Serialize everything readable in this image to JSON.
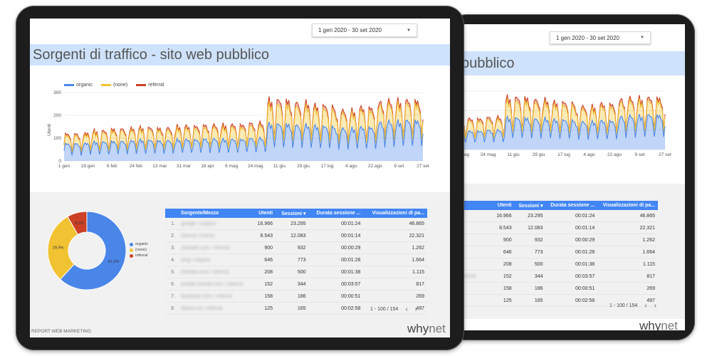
{
  "report": {
    "date_range": "1 gen 2020 - 30 set 2020",
    "title": "Sorgenti di traffico - sito web pubblico",
    "title_partial": "pubblico",
    "footer": "REPORT WEB MARKETING",
    "logo_why": "why",
    "logo_net": "net"
  },
  "chart_data": {
    "type": "area",
    "stacked": true,
    "title": "",
    "xlabel": "",
    "ylabel": "Utenti",
    "ylim": [
      0,
      300
    ],
    "yticks": [
      "0",
      "100",
      "200",
      "300"
    ],
    "xticks": [
      "1 gen",
      "19 gen",
      "6 feb",
      "24 feb",
      "13 mar",
      "31 mar",
      "18 apr",
      "6 mag",
      "24 mag",
      "11 giu",
      "29 giu",
      "17 lug",
      "4 ago",
      "22 ago",
      "9 set",
      "27 set"
    ],
    "xticks_back": [
      "6 mag",
      "24 mag",
      "11 giu",
      "29 giu",
      "17 lug",
      "4 ago",
      "22 ago",
      "9 set",
      "27 set"
    ],
    "legend_position": "top-left",
    "series": [
      {
        "name": "organic",
        "color": "#4a86e8",
        "weekday_peak": [
          75,
          82,
          85,
          90,
          88,
          92,
          95,
          93,
          98,
          160,
          155,
          150,
          140,
          145,
          170,
          175
        ],
        "weekend_low": [
          15,
          18,
          20,
          20,
          22,
          25,
          25,
          26,
          28,
          40,
          40,
          38,
          35,
          36,
          42,
          45
        ]
      },
      {
        "name": "(none)",
        "color": "#f1c232",
        "weekday_peak": [
          35,
          40,
          45,
          45,
          45,
          48,
          50,
          52,
          55,
          85,
          80,
          75,
          65,
          72,
          75,
          72
        ],
        "weekend_low": [
          8,
          10,
          10,
          12,
          12,
          12,
          14,
          14,
          15,
          20,
          20,
          18,
          16,
          18,
          20,
          20
        ]
      },
      {
        "name": "referral",
        "color": "#cc4125",
        "weekday_peak": [
          8,
          9,
          10,
          10,
          10,
          11,
          11,
          12,
          12,
          20,
          18,
          16,
          14,
          15,
          16,
          16
        ],
        "weekend_low": [
          3,
          3,
          3,
          3,
          4,
          4,
          4,
          4,
          4,
          6,
          6,
          5,
          5,
          5,
          6,
          6
        ]
      }
    ]
  },
  "pie_data": {
    "type": "pie",
    "slices": [
      {
        "name": "organic",
        "value": 61.9,
        "label": "61,9%",
        "color": "#4a86e8"
      },
      {
        "name": "(none)",
        "value": 29.9,
        "label": "29,9%",
        "color": "#f1c232"
      },
      {
        "name": "referral",
        "value": 8.2,
        "label": "8,2%",
        "color": "#cc4125"
      }
    ]
  },
  "table": {
    "headers": {
      "source": "Sorgente/Mezzo",
      "users": "Utenti",
      "sessions": "Sessioni",
      "duration": "Durata sessione ...",
      "views": "Visualizzazioni di pa..."
    },
    "sort_icon": "sort-down-icon",
    "rows": [
      {
        "idx": "1.",
        "src": "google / organic",
        "users": "16.966",
        "sessions": "23.295",
        "duration": "00:01:24",
        "views": "46.865"
      },
      {
        "idx": "2.",
        "src": "(direct) / (none)",
        "users": "8.543",
        "sessions": "12.083",
        "duration": "00:01:14",
        "views": "22.321"
      },
      {
        "idx": "3.",
        "src": "youtube.com / referral",
        "users": "900",
        "sessions": "932",
        "duration": "00:00:29",
        "views": "1.262"
      },
      {
        "idx": "4.",
        "src": "bing / organic",
        "users": "646",
        "sessions": "773",
        "duration": "00:01:28",
        "views": "1.664"
      },
      {
        "idx": "5.",
        "src": "linkedin.com / referral",
        "users": "208",
        "sessions": "500",
        "duration": "00:01:38",
        "views": "1.115"
      },
      {
        "idx": "6.",
        "src": "portale.ehmail.com / referral",
        "users": "152",
        "sessions": "344",
        "duration": "00:03:57",
        "views": "817"
      },
      {
        "idx": "7.",
        "src": "facebook.com / referral",
        "users": "158",
        "sessions": "186",
        "duration": "00:00:51",
        "views": "269"
      },
      {
        "idx": "8.",
        "src": "dtseco.eu / referral",
        "users": "125",
        "sessions": "165",
        "duration": "00:02:58",
        "views": "497"
      }
    ],
    "back_src": [
      "",
      "",
      "i",
      "",
      "i",
      "eferral",
      "",
      ""
    ],
    "pager": "1 - 100 / 154"
  }
}
